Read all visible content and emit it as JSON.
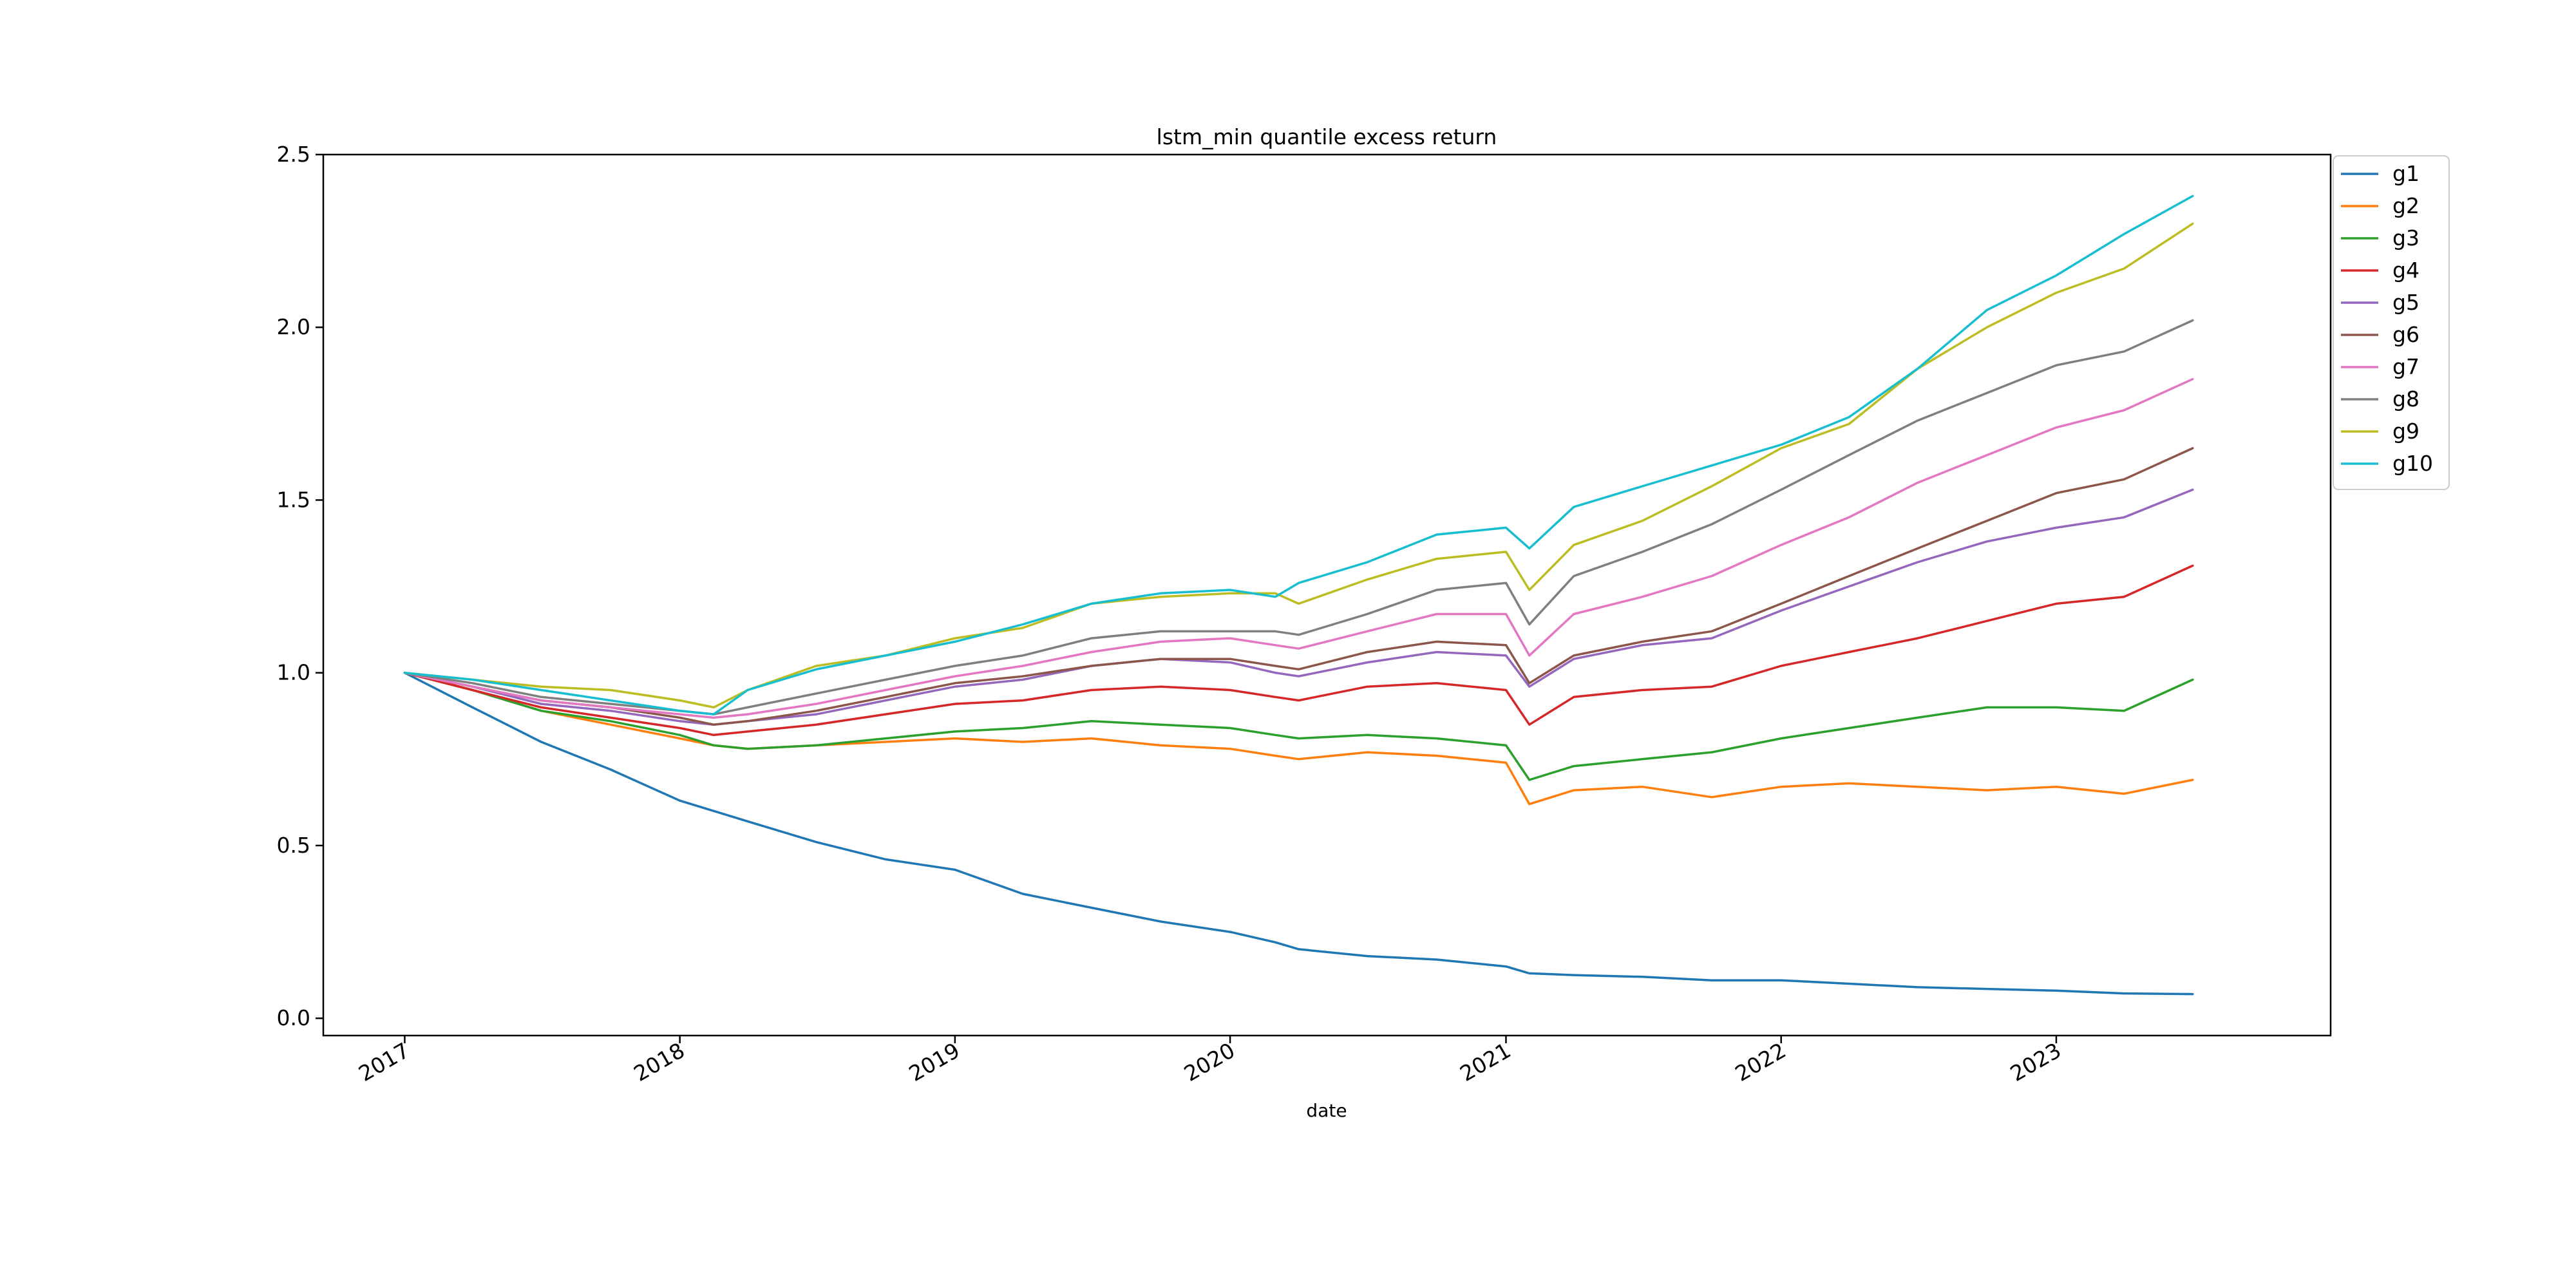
{
  "chart_data": {
    "type": "line",
    "title": "lstm_min quantile excess return",
    "xlabel": "date",
    "ylabel": "",
    "x_type": "date",
    "xlim": [
      "2016-09-15",
      "2023-12-31"
    ],
    "ylim": [
      -0.05,
      2.5
    ],
    "x_tick_labels": [
      "2017",
      "2018",
      "2019",
      "2020",
      "2021",
      "2022",
      "2023"
    ],
    "x_tick_values": [
      "2017-01-01",
      "2018-01-01",
      "2019-01-01",
      "2020-01-01",
      "2021-01-01",
      "2022-01-01",
      "2023-01-01"
    ],
    "y_tick_labels": [
      "0.0",
      "0.5",
      "1.0",
      "1.5",
      "2.0",
      "2.5"
    ],
    "y_tick_values": [
      0.0,
      0.5,
      1.0,
      1.5,
      2.0,
      2.5
    ],
    "grid": false,
    "legend_position": "outside top-right",
    "x": [
      "2017-01-01",
      "2017-04-01",
      "2017-07-01",
      "2017-10-01",
      "2018-01-01",
      "2018-02-15",
      "2018-04-01",
      "2018-07-01",
      "2018-10-01",
      "2019-01-01",
      "2019-04-01",
      "2019-07-01",
      "2019-10-01",
      "2020-01-01",
      "2020-03-01",
      "2020-04-01",
      "2020-07-01",
      "2020-10-01",
      "2021-01-01",
      "2021-02-01",
      "2021-04-01",
      "2021-07-01",
      "2021-10-01",
      "2022-01-01",
      "2022-04-01",
      "2022-07-01",
      "2022-10-01",
      "2023-01-01",
      "2023-04-01",
      "2023-07-01"
    ],
    "series": [
      {
        "name": "g1",
        "color": "#1f77b4",
        "values": [
          1.0,
          0.9,
          0.8,
          0.72,
          0.63,
          0.6,
          0.57,
          0.51,
          0.46,
          0.43,
          0.36,
          0.32,
          0.28,
          0.25,
          0.22,
          0.2,
          0.18,
          0.17,
          0.15,
          0.13,
          0.125,
          0.12,
          0.11,
          0.11,
          0.1,
          0.09,
          0.085,
          0.08,
          0.072,
          0.07
        ]
      },
      {
        "name": "g2",
        "color": "#ff7f0e",
        "values": [
          1.0,
          0.95,
          0.89,
          0.85,
          0.81,
          0.79,
          0.78,
          0.79,
          0.8,
          0.81,
          0.8,
          0.81,
          0.79,
          0.78,
          0.76,
          0.75,
          0.77,
          0.76,
          0.74,
          0.62,
          0.66,
          0.67,
          0.64,
          0.67,
          0.68,
          0.67,
          0.66,
          0.67,
          0.65,
          0.69
        ]
      },
      {
        "name": "g3",
        "color": "#2ca02c",
        "values": [
          1.0,
          0.95,
          0.89,
          0.86,
          0.82,
          0.79,
          0.78,
          0.79,
          0.81,
          0.83,
          0.84,
          0.86,
          0.85,
          0.84,
          0.82,
          0.81,
          0.82,
          0.81,
          0.79,
          0.69,
          0.73,
          0.75,
          0.77,
          0.81,
          0.84,
          0.87,
          0.9,
          0.9,
          0.89,
          0.98
        ]
      },
      {
        "name": "g4",
        "color": "#d62728",
        "values": [
          1.0,
          0.95,
          0.9,
          0.87,
          0.84,
          0.82,
          0.83,
          0.85,
          0.88,
          0.91,
          0.92,
          0.95,
          0.96,
          0.95,
          0.93,
          0.92,
          0.96,
          0.97,
          0.95,
          0.85,
          0.93,
          0.95,
          0.96,
          1.02,
          1.06,
          1.1,
          1.15,
          1.2,
          1.22,
          1.31
        ]
      },
      {
        "name": "g5",
        "color": "#9467bd",
        "values": [
          1.0,
          0.96,
          0.91,
          0.89,
          0.86,
          0.85,
          0.86,
          0.88,
          0.92,
          0.96,
          0.98,
          1.02,
          1.04,
          1.03,
          1.0,
          0.99,
          1.03,
          1.06,
          1.05,
          0.96,
          1.04,
          1.08,
          1.1,
          1.18,
          1.25,
          1.32,
          1.38,
          1.42,
          1.45,
          1.53
        ]
      },
      {
        "name": "g6",
        "color": "#8c564b",
        "values": [
          1.0,
          0.96,
          0.92,
          0.9,
          0.87,
          0.85,
          0.86,
          0.89,
          0.93,
          0.97,
          0.99,
          1.02,
          1.04,
          1.04,
          1.02,
          1.01,
          1.06,
          1.09,
          1.08,
          0.97,
          1.05,
          1.09,
          1.12,
          1.2,
          1.28,
          1.36,
          1.44,
          1.52,
          1.56,
          1.65
        ]
      },
      {
        "name": "g7",
        "color": "#e377c2",
        "values": [
          1.0,
          0.96,
          0.92,
          0.9,
          0.88,
          0.87,
          0.88,
          0.91,
          0.95,
          0.99,
          1.02,
          1.06,
          1.09,
          1.1,
          1.08,
          1.07,
          1.12,
          1.17,
          1.17,
          1.05,
          1.17,
          1.22,
          1.28,
          1.37,
          1.45,
          1.55,
          1.63,
          1.71,
          1.76,
          1.85
        ]
      },
      {
        "name": "g8",
        "color": "#7f7f7f",
        "values": [
          1.0,
          0.97,
          0.93,
          0.91,
          0.89,
          0.88,
          0.9,
          0.94,
          0.98,
          1.02,
          1.05,
          1.1,
          1.12,
          1.12,
          1.12,
          1.11,
          1.17,
          1.24,
          1.26,
          1.14,
          1.28,
          1.35,
          1.43,
          1.53,
          1.63,
          1.73,
          1.81,
          1.89,
          1.93,
          2.02
        ]
      },
      {
        "name": "g9",
        "color": "#bcbd22",
        "values": [
          1.0,
          0.98,
          0.96,
          0.95,
          0.92,
          0.9,
          0.95,
          1.02,
          1.05,
          1.1,
          1.13,
          1.2,
          1.22,
          1.23,
          1.23,
          1.2,
          1.27,
          1.33,
          1.35,
          1.24,
          1.37,
          1.44,
          1.54,
          1.65,
          1.72,
          1.88,
          2.0,
          2.1,
          2.17,
          2.3
        ]
      },
      {
        "name": "g10",
        "color": "#17becf",
        "values": [
          1.0,
          0.98,
          0.95,
          0.92,
          0.89,
          0.88,
          0.95,
          1.01,
          1.05,
          1.09,
          1.14,
          1.2,
          1.23,
          1.24,
          1.22,
          1.26,
          1.32,
          1.4,
          1.42,
          1.36,
          1.48,
          1.54,
          1.6,
          1.66,
          1.74,
          1.88,
          2.05,
          2.15,
          2.27,
          2.38
        ]
      }
    ]
  }
}
